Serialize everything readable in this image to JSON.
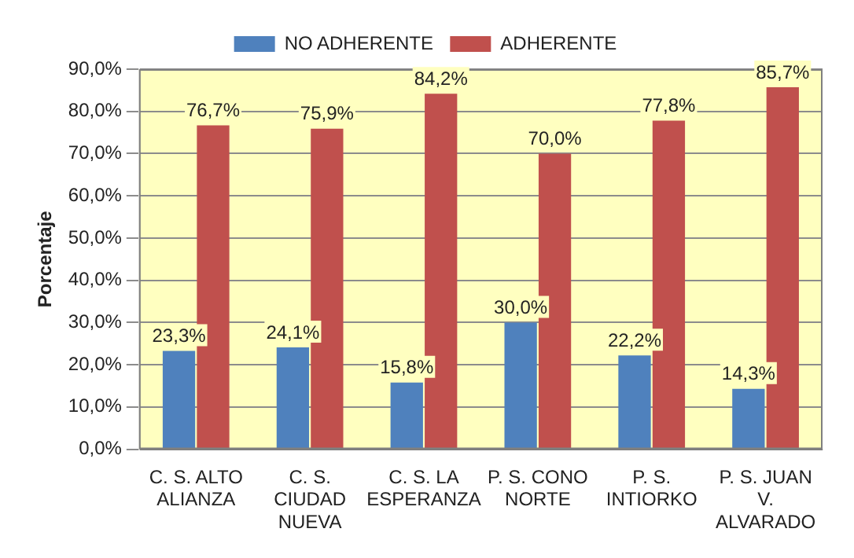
{
  "chart_data": {
    "type": "bar",
    "ylabel": "Porcentaje",
    "categories": [
      "C. S. ALTO ALIANZA",
      "C. S. CIUDAD NUEVA",
      "C. S. LA ESPERANZA",
      "P. S. CONO NORTE",
      "P. S. INTIORKO",
      "P. S. JUAN V. ALVARADO"
    ],
    "series": [
      {
        "name": "NO ADHERENTE",
        "color": "#4f81bd",
        "values": [
          23.3,
          24.1,
          15.8,
          30.0,
          22.2,
          14.3
        ],
        "value_labels": [
          "23,3%",
          "24,1%",
          "15,8%",
          "30,0%",
          "22,2%",
          "14,3%"
        ]
      },
      {
        "name": "ADHERENTE",
        "color": "#c0504d",
        "values": [
          76.7,
          75.9,
          84.2,
          70.0,
          77.8,
          85.7
        ],
        "value_labels": [
          "76,7%",
          "75,9%",
          "84,2%",
          "70,0%",
          "77,8%",
          "85,7%"
        ]
      }
    ],
    "ylim": [
      0,
      90
    ],
    "yticks": [
      {
        "value": 0,
        "label": "0,0%"
      },
      {
        "value": 10,
        "label": "10,0%"
      },
      {
        "value": 20,
        "label": "20,0%"
      },
      {
        "value": 30,
        "label": "30,0%"
      },
      {
        "value": 40,
        "label": "40,0%"
      },
      {
        "value": 50,
        "label": "50,0%"
      },
      {
        "value": 60,
        "label": "60,0%"
      },
      {
        "value": 70,
        "label": "70,0%"
      },
      {
        "value": 80,
        "label": "80,0%"
      },
      {
        "value": 90,
        "label": "90,0%"
      }
    ],
    "grid": "y",
    "legend": "top"
  }
}
